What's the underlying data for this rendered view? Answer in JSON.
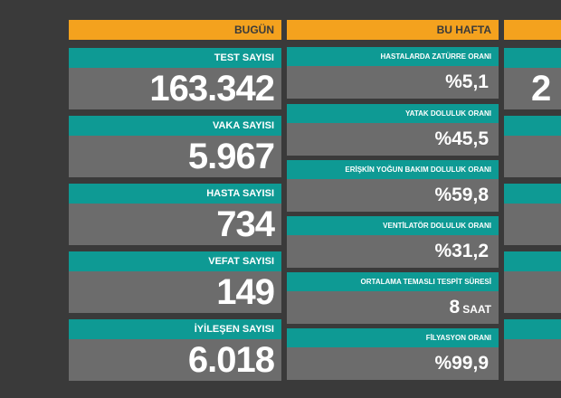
{
  "today": {
    "header": "BUGÜN",
    "stats": [
      {
        "label": "TEST SAYISI",
        "value": "163.342"
      },
      {
        "label": "VAKA SAYISI",
        "value": "5.967"
      },
      {
        "label": "HASTA SAYISI",
        "value": "734"
      },
      {
        "label": "VEFAT SAYISI",
        "value": "149"
      },
      {
        "label": "İYİLEŞEN SAYISI",
        "value": "6.018"
      }
    ]
  },
  "week": {
    "header": "BU HAFTA",
    "stats": [
      {
        "label": "HASTALARDA ZATÜRRE ORANI",
        "value": "%5,1",
        "unit": ""
      },
      {
        "label": "YATAK DOLULUK ORANI",
        "value": "%45,5",
        "unit": ""
      },
      {
        "label": "ERİŞKİN YOĞUN BAKIM DOLULUK ORANI",
        "value": "%59,8",
        "unit": ""
      },
      {
        "label": "VENTİLATÖR DOLULUK ORANI",
        "value": "%31,2",
        "unit": ""
      },
      {
        "label": "ORTALAMA TEMASLI TESPİT SÜRESİ",
        "value": "8",
        "unit": "SAAT"
      },
      {
        "label": "FİLYASYON ORANI",
        "value": "%99,9",
        "unit": ""
      }
    ]
  },
  "third": {
    "visible_value": "2"
  },
  "colors": {
    "background": "#3a3a3a",
    "header": "#f4a21e",
    "label": "#0e9a94",
    "value_box": "#6c6c6c",
    "text": "#ffffff"
  }
}
